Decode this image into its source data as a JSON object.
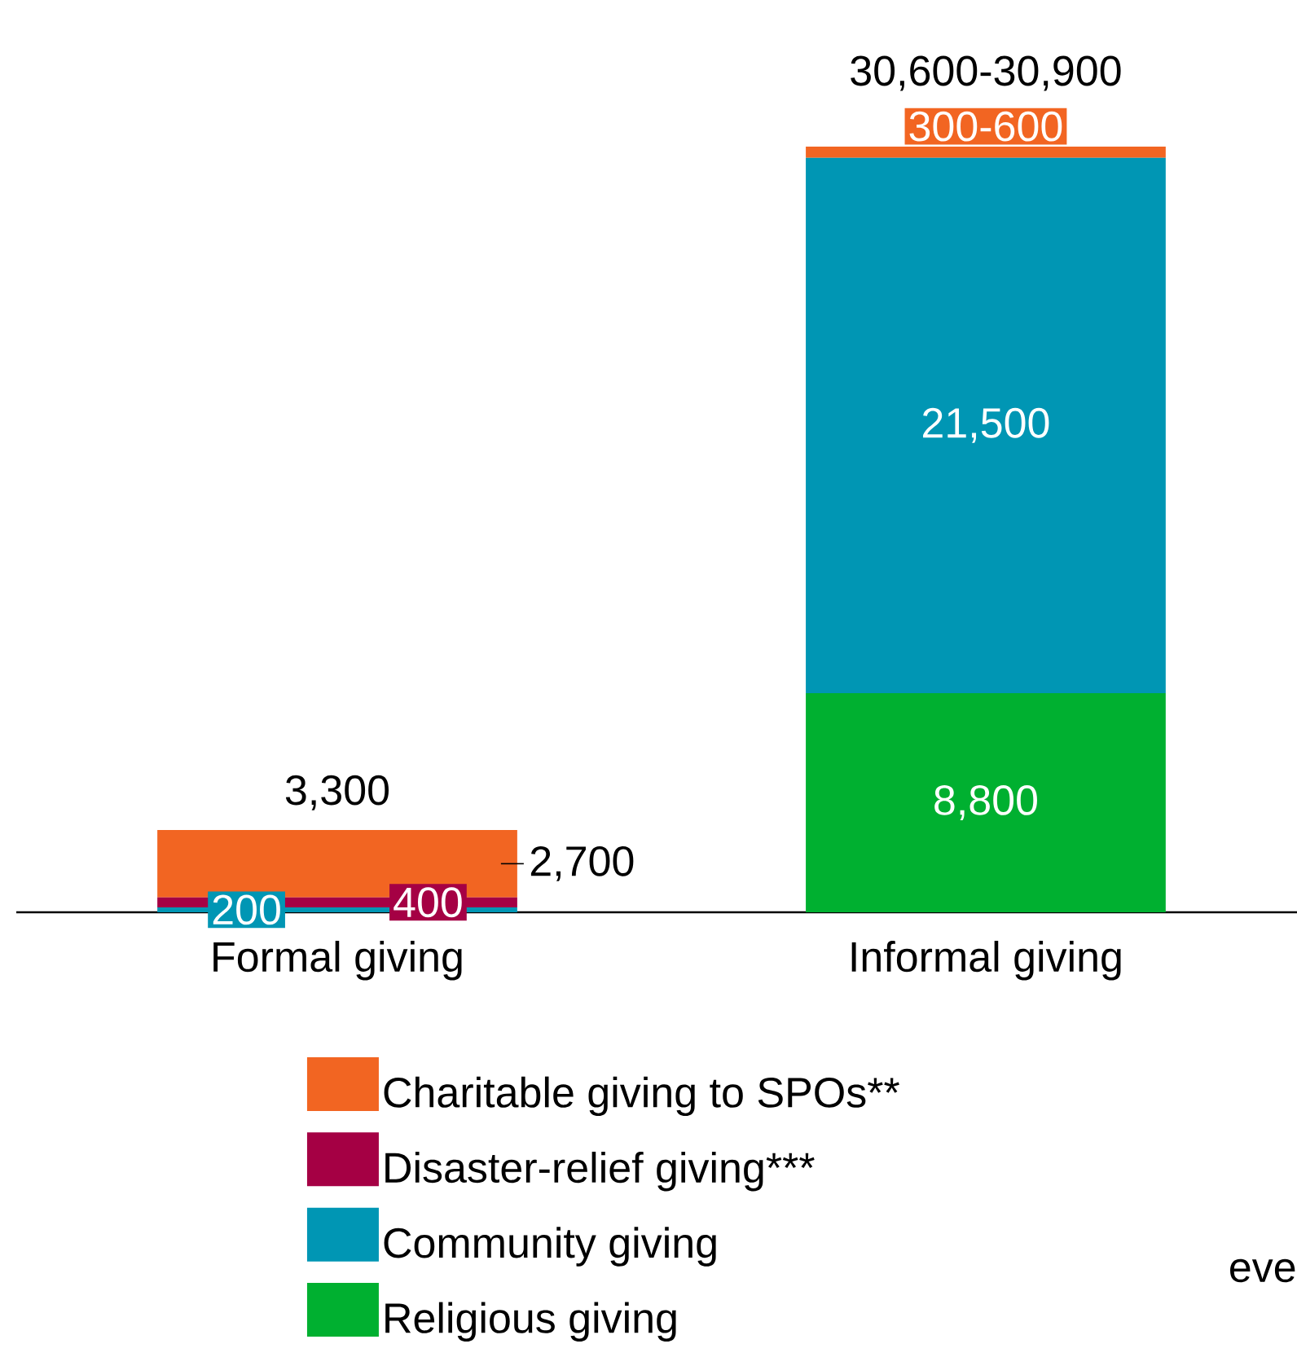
{
  "chart_data": {
    "type": "bar",
    "stacked": true,
    "categories": [
      "Formal giving",
      "Informal giving"
    ],
    "series": [
      {
        "name": "Religious giving",
        "color": "#00b030",
        "values": [
          0,
          8800
        ],
        "value_labels": [
          null,
          "8,800"
        ]
      },
      {
        "name": "Community giving",
        "color": "#0096b4",
        "values": [
          200,
          21500
        ],
        "value_labels": [
          "200",
          "21,500"
        ]
      },
      {
        "name": "Disaster-relief giving***",
        "color": "#a50044",
        "values": [
          400,
          0
        ],
        "value_labels": [
          "400",
          null
        ]
      },
      {
        "name": "Charitable giving to SPOs**",
        "color": "#f26522",
        "values": [
          2700,
          450
        ],
        "value_labels": [
          "2,700",
          "300-600"
        ]
      }
    ],
    "totals": [
      "3,300",
      "30,600-30,900"
    ],
    "legend": "bottom",
    "annotations": [
      "eve"
    ]
  }
}
